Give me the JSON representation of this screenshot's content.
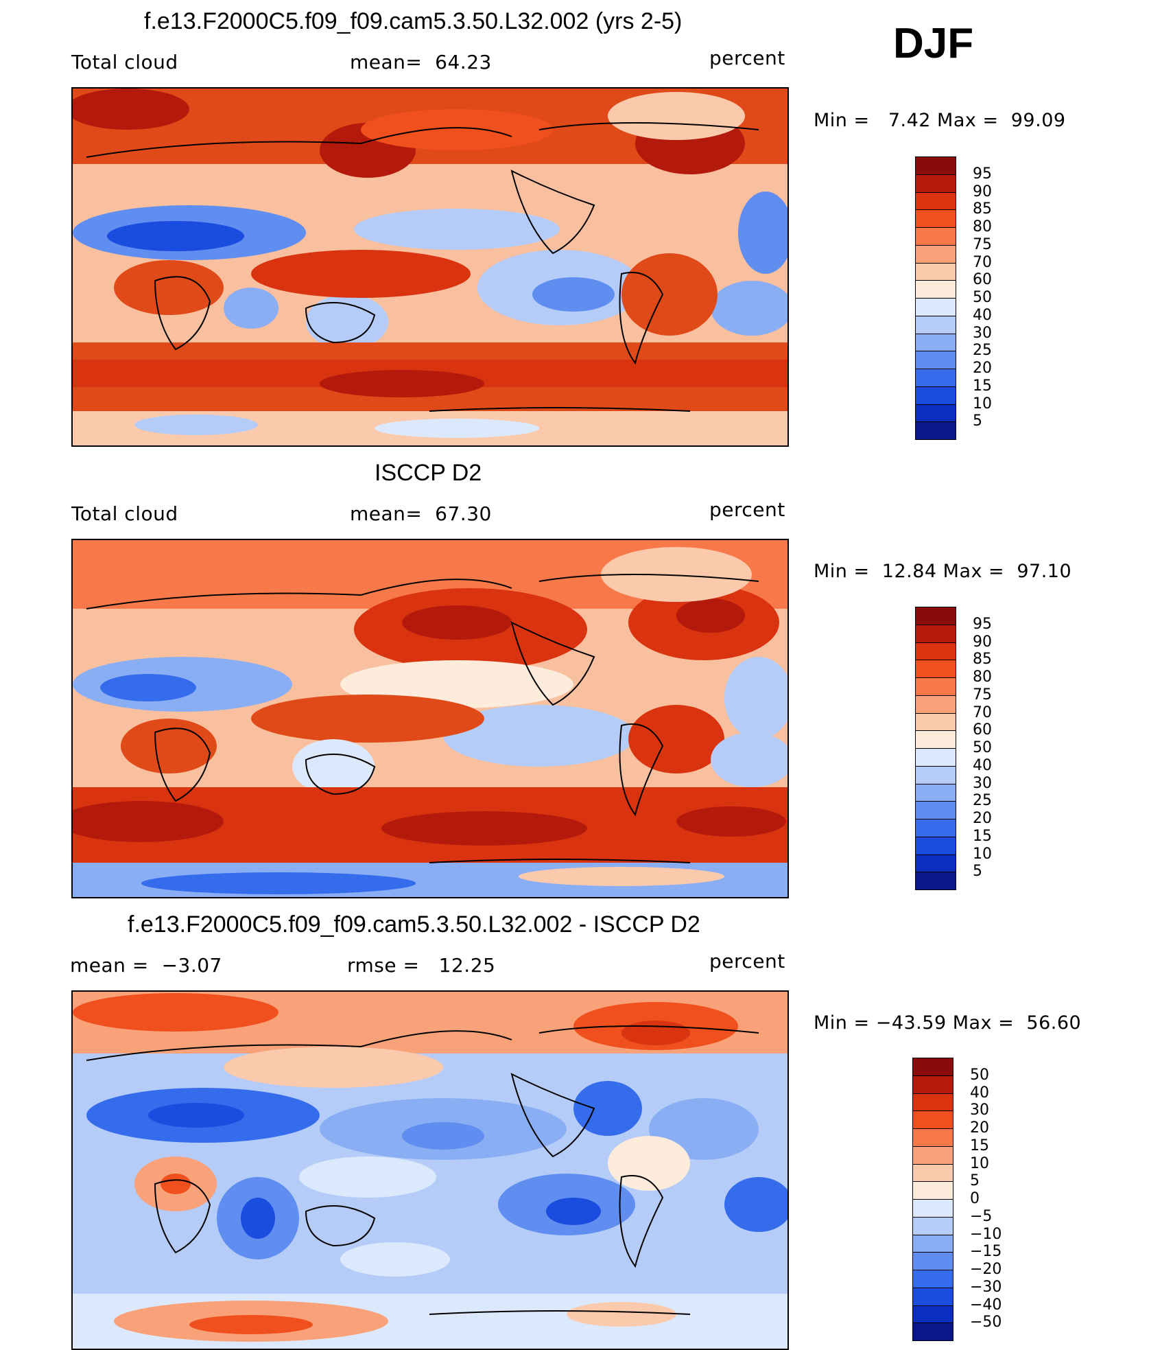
{
  "season_label": "DJF",
  "panels": [
    {
      "title": "f.e13.F2000C5.f09_f09.cam5.3.50.L32.002 (yrs 2-5)",
      "left_label": "Total cloud",
      "center_label": "mean=  64.23",
      "units": "percent",
      "minmax": "Min =   7.42 Max =  99.09",
      "colorbar_ticks": [
        "95",
        "90",
        "85",
        "80",
        "75",
        "70",
        "60",
        "50",
        "40",
        "30",
        "25",
        "20",
        "15",
        "10",
        "5"
      ]
    },
    {
      "title": "ISCCP D2",
      "left_label": "Total cloud",
      "center_label": "mean=  67.30",
      "units": "percent",
      "minmax": "Min =  12.84 Max =  97.10",
      "colorbar_ticks": [
        "95",
        "90",
        "85",
        "80",
        "75",
        "70",
        "60",
        "50",
        "40",
        "30",
        "25",
        "20",
        "15",
        "10",
        "5"
      ]
    },
    {
      "title": "f.e13.F2000C5.f09_f09.cam5.3.50.L32.002 - ISCCP D2",
      "left_label": "mean =  −3.07",
      "center_label": "rmse =   12.25",
      "units": "percent",
      "minmax": "Min = −43.59 Max =  56.60",
      "colorbar_ticks": [
        "50",
        "40",
        "30",
        "20",
        "15",
        "10",
        "5",
        "0",
        "−5",
        "−10",
        "−15",
        "−20",
        "−30",
        "−40",
        "−50"
      ]
    }
  ],
  "colorbar_colors": [
    "#8b0a0a",
    "#b41a0c",
    "#d9340f",
    "#f0501e",
    "#f7794a",
    "#f9a27a",
    "#fbcaad",
    "#fdebdc",
    "#dce8fb",
    "#b4ccf7",
    "#8aaef4",
    "#5f8ef0",
    "#346cec",
    "#1a4ce0",
    "#0a2fc0",
    "#08188a"
  ]
}
